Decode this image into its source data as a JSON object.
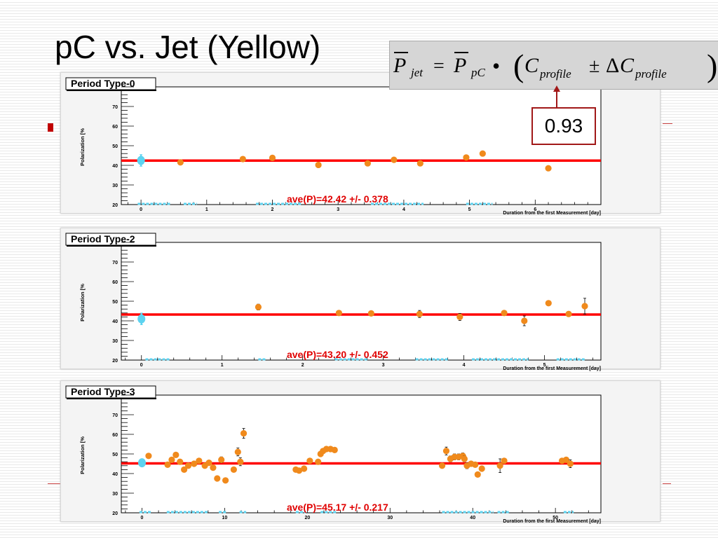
{
  "slide": {
    "title": "pC vs. Jet (Yellow)",
    "formula": {
      "lhs_symbol": "P",
      "lhs_sub": "jet",
      "equals": "=",
      "rhs_symbol": "P",
      "rhs_sub": "pC",
      "dot": "•",
      "lparen": "(",
      "rparen": ")",
      "c_symbol": "C",
      "c_sub": "profile",
      "pm": "±",
      "delta": "Δ",
      "dc_symbol": "C",
      "dc_sub": "profile"
    },
    "callout_value": "0.93"
  },
  "chart_data": [
    {
      "type": "scatter",
      "panel_label": "Period Type-0",
      "ylabel": "Polarization [%",
      "xlabel": "Duration from the first Measurement [day]",
      "annotation": "ave(P)=42.42 +/- 0.378",
      "xlim": [
        -0.3,
        7.0
      ],
      "ylim": [
        20,
        80
      ],
      "xticks": [
        0,
        1,
        2,
        3,
        4,
        5,
        6
      ],
      "yticks": [
        20,
        30,
        40,
        50,
        60,
        70
      ],
      "average": 42.42,
      "average_error": 0.378,
      "points": [
        {
          "x": 0.0,
          "y": 42.5,
          "err": 3.0,
          "color": "#5dd3f0",
          "big": true
        },
        {
          "x": 0.6,
          "y": 41.5,
          "err": 0.8
        },
        {
          "x": 1.55,
          "y": 43.2,
          "err": 0.8
        },
        {
          "x": 2.0,
          "y": 43.8,
          "err": 0.8
        },
        {
          "x": 2.7,
          "y": 40.2,
          "err": 0.8
        },
        {
          "x": 3.45,
          "y": 41.0,
          "err": 0.8
        },
        {
          "x": 3.85,
          "y": 42.8,
          "err": 0.8
        },
        {
          "x": 4.25,
          "y": 41.0,
          "err": 0.8
        },
        {
          "x": 4.95,
          "y": 44.0,
          "err": 0.8
        },
        {
          "x": 5.2,
          "y": 46.0,
          "err": 0.8
        },
        {
          "x": 6.2,
          "y": 38.5,
          "err": 0.8
        }
      ],
      "bottom_markers": [
        [
          -0.05,
          0.45
        ],
        [
          0.65,
          0.85
        ],
        [
          1.75,
          2.45
        ],
        [
          3.5,
          4.3
        ],
        [
          4.95,
          5.35
        ]
      ]
    },
    {
      "type": "scatter",
      "panel_label": "Period Type-2",
      "ylabel": "Polarization [%",
      "xlabel": "Duration from the first Measurement [day]",
      "annotation": "ave(P)=43.20 +/- 0.452",
      "xlim": [
        -0.25,
        5.7
      ],
      "ylim": [
        20,
        80
      ],
      "xticks": [
        0,
        1,
        2,
        3,
        4,
        5
      ],
      "yticks": [
        20,
        30,
        40,
        50,
        60,
        70
      ],
      "average": 43.2,
      "average_error": 0.452,
      "points": [
        {
          "x": 0.0,
          "y": 41.0,
          "err": 3.0,
          "color": "#5dd3f0",
          "big": true
        },
        {
          "x": 1.45,
          "y": 47.0,
          "err": 1.5
        },
        {
          "x": 2.45,
          "y": 44.0,
          "err": 1.0
        },
        {
          "x": 2.85,
          "y": 43.8,
          "err": 1.0
        },
        {
          "x": 3.45,
          "y": 43.5,
          "err": 1.8
        },
        {
          "x": 3.95,
          "y": 42.0,
          "err": 1.8
        },
        {
          "x": 4.5,
          "y": 44.0,
          "err": 1.0
        },
        {
          "x": 4.75,
          "y": 40.0,
          "err": 2.5
        },
        {
          "x": 5.05,
          "y": 49.0,
          "err": 1.0
        },
        {
          "x": 5.3,
          "y": 43.5,
          "err": 1.0
        },
        {
          "x": 5.5,
          "y": 47.5,
          "err": 4.0
        }
      ],
      "bottom_markers": [
        [
          0.05,
          0.35
        ],
        [
          1.45,
          1.55
        ],
        [
          2.4,
          2.8
        ],
        [
          3.4,
          3.8
        ],
        [
          4.1,
          4.8
        ],
        [
          5.15,
          5.5
        ]
      ]
    },
    {
      "type": "scatter",
      "panel_label": "Period Type-3",
      "ylabel": "Polarization [%",
      "xlabel": "Duration from the first Measurement [day]",
      "annotation": "ave(P)=45.17 +/- 0.217",
      "xlim": [
        -2.5,
        55.5
      ],
      "ylim": [
        20,
        80
      ],
      "xticks": [
        0,
        10,
        20,
        30,
        40,
        50
      ],
      "yticks": [
        20,
        30,
        40,
        50,
        60,
        70
      ],
      "average": 45.17,
      "average_error": 0.217,
      "points": [
        {
          "x": 0.0,
          "y": 45.5,
          "err": 2.0,
          "color": "#5dd3f0",
          "big": true
        },
        {
          "x": 0.8,
          "y": 49.0,
          "err": 1.0
        },
        {
          "x": 3.1,
          "y": 44.5,
          "err": 1.0
        },
        {
          "x": 3.6,
          "y": 47.0,
          "err": 1.0
        },
        {
          "x": 4.1,
          "y": 49.5,
          "err": 1.0
        },
        {
          "x": 4.6,
          "y": 46.0,
          "err": 1.0
        },
        {
          "x": 5.1,
          "y": 42.0,
          "err": 1.0
        },
        {
          "x": 5.6,
          "y": 44.0,
          "err": 1.0
        },
        {
          "x": 6.3,
          "y": 45.0,
          "err": 1.0
        },
        {
          "x": 6.9,
          "y": 46.5,
          "err": 1.0
        },
        {
          "x": 7.6,
          "y": 44.0,
          "err": 1.0
        },
        {
          "x": 8.1,
          "y": 45.5,
          "err": 1.0
        },
        {
          "x": 8.6,
          "y": 43.0,
          "err": 1.0
        },
        {
          "x": 9.1,
          "y": 37.5,
          "err": 1.0
        },
        {
          "x": 9.6,
          "y": 47.0,
          "err": 1.5
        },
        {
          "x": 10.1,
          "y": 36.5,
          "err": 1.0
        },
        {
          "x": 11.1,
          "y": 42.0,
          "err": 1.0
        },
        {
          "x": 11.6,
          "y": 51.0,
          "err": 2.0
        },
        {
          "x": 11.9,
          "y": 46.0,
          "err": 2.0
        },
        {
          "x": 12.3,
          "y": 60.5,
          "err": 2.5
        },
        {
          "x": 18.6,
          "y": 42.0,
          "err": 1.0
        },
        {
          "x": 19.0,
          "y": 41.5,
          "err": 1.0
        },
        {
          "x": 19.6,
          "y": 42.5,
          "err": 1.0
        },
        {
          "x": 20.3,
          "y": 46.5,
          "err": 1.0
        },
        {
          "x": 21.3,
          "y": 46.0,
          "err": 1.0
        },
        {
          "x": 21.6,
          "y": 50.0,
          "err": 1.0
        },
        {
          "x": 21.9,
          "y": 51.5,
          "err": 1.0
        },
        {
          "x": 22.3,
          "y": 52.5,
          "err": 1.0
        },
        {
          "x": 22.8,
          "y": 52.5,
          "err": 1.0
        },
        {
          "x": 23.3,
          "y": 52.0,
          "err": 1.0
        },
        {
          "x": 36.3,
          "y": 44.0,
          "err": 1.0
        },
        {
          "x": 36.8,
          "y": 51.5,
          "err": 2.0
        },
        {
          "x": 37.3,
          "y": 47.5,
          "err": 1.5
        },
        {
          "x": 37.8,
          "y": 48.5,
          "err": 1.5
        },
        {
          "x": 38.3,
          "y": 48.5,
          "err": 1.5
        },
        {
          "x": 38.8,
          "y": 49.0,
          "err": 1.5
        },
        {
          "x": 39.0,
          "y": 47.5,
          "err": 1.5
        },
        {
          "x": 39.3,
          "y": 44.0,
          "err": 1.5
        },
        {
          "x": 39.8,
          "y": 45.0,
          "err": 1.0
        },
        {
          "x": 40.3,
          "y": 44.5,
          "err": 1.0
        },
        {
          "x": 40.6,
          "y": 39.5,
          "err": 1.0
        },
        {
          "x": 41.1,
          "y": 42.5,
          "err": 1.0
        },
        {
          "x": 43.3,
          "y": 44.0,
          "err": 3.5
        },
        {
          "x": 43.8,
          "y": 46.5,
          "err": 1.0
        },
        {
          "x": 50.8,
          "y": 46.5,
          "err": 1.0
        },
        {
          "x": 51.3,
          "y": 47.0,
          "err": 1.0
        },
        {
          "x": 51.8,
          "y": 45.0,
          "err": 2.0
        }
      ],
      "bottom_markers": [
        [
          -0.3,
          1.2
        ],
        [
          3.0,
          8.0
        ],
        [
          9.3,
          10.3
        ],
        [
          11.8,
          12.6
        ],
        [
          18.6,
          19.8
        ],
        [
          21.6,
          23.5
        ],
        [
          36.3,
          42.5
        ],
        [
          43.0,
          44.5
        ],
        [
          51.0,
          52.2
        ]
      ]
    }
  ]
}
